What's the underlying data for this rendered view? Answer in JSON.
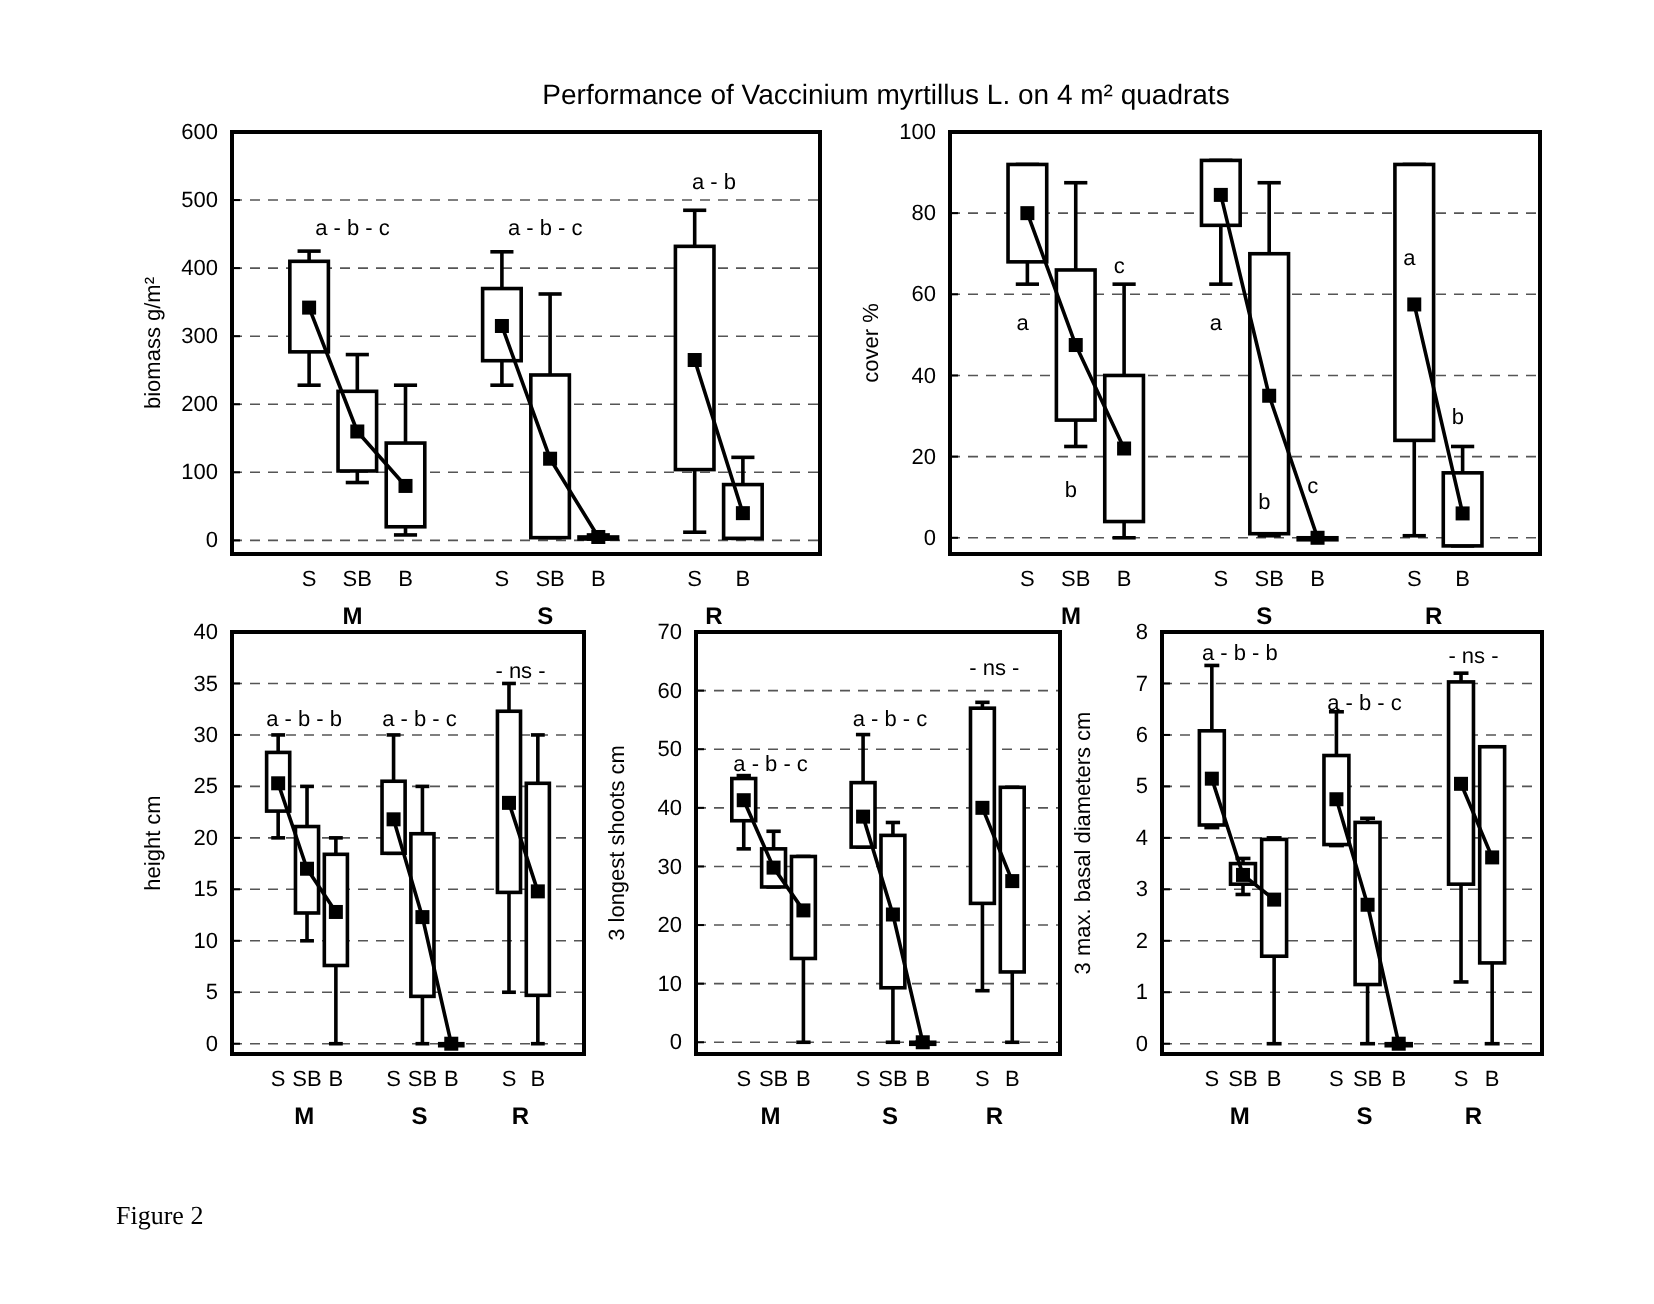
{
  "chart_data": [
    {
      "type": "box",
      "title": "Performance of Vaccinium myrtillus L. on 4 m² quadrats",
      "ylabel": "biomass g/m²",
      "categories": [
        null,
        "S",
        "SB",
        "B",
        null,
        "S",
        "SB",
        "B",
        null,
        "S",
        "B",
        null
      ],
      "ylim": [
        -20,
        600
      ],
      "yticks": [
        0,
        100,
        200,
        300,
        400,
        500,
        600
      ],
      "grid": "y",
      "series": [
        {
          "type": "box",
          "color": "#ffffff",
          "boxes": [
            null,
            {
              "low": 228,
              "q1": 277,
              "median": 342,
              "q3": 410,
              "high": 425
            },
            {
              "low": 85,
              "q1": 102,
              "median": 160,
              "q3": 219,
              "high": 273
            },
            {
              "low": 8,
              "q1": 20,
              "median": 80,
              "q3": 143,
              "high": 228
            },
            null,
            {
              "low": 228,
              "q1": 264,
              "median": 315,
              "q3": 370,
              "high": 424
            },
            {
              "low": 4,
              "q1": 4,
              "median": 120,
              "q3": 243,
              "high": 362
            },
            {
              "low": 2,
              "q1": 5,
              "median": 5,
              "q3": 5,
              "high": 8
            },
            null,
            {
              "low": 12,
              "q1": 104,
              "median": 265,
              "q3": 432,
              "high": 485
            },
            {
              "low": 3,
              "q1": 3,
              "median": 40,
              "q3": 82,
              "high": 122
            },
            null
          ]
        },
        {
          "type": "line",
          "color": "#000000",
          "values": [
            null,
            342,
            160,
            80,
            null,
            315,
            120,
            5,
            null,
            265,
            40,
            null
          ]
        }
      ],
      "annotations": [
        "M",
        "S",
        "R",
        "a - b - c",
        "a - b - c",
        "a - b",
        "Figure 2"
      ]
    },
    {
      "type": "box",
      "ylabel": "cover %",
      "categories": [
        null,
        "S",
        "SB",
        "B",
        null,
        "S",
        "SB",
        "B",
        null,
        "S",
        "B",
        null
      ],
      "ylim": [
        -4,
        100
      ],
      "yticks": [
        0,
        20,
        40,
        60,
        80,
        100
      ],
      "grid": "y",
      "series": [
        {
          "type": "box",
          "color": "#ffffff",
          "boxes": [
            null,
            {
              "low": 62.5,
              "q1": 68,
              "median": 80,
              "q3": 92,
              "high": 92
            },
            {
              "low": 22.5,
              "q1": 29,
              "median": 47.5,
              "q3": 66,
              "high": 87.5
            },
            {
              "low": 0,
              "q1": 4,
              "median": 22,
              "q3": 40,
              "high": 62.5
            },
            null,
            {
              "low": 62.5,
              "q1": 77,
              "median": 84.5,
              "q3": 93,
              "high": 93
            },
            {
              "low": 0.5,
              "q1": 1,
              "median": 35,
              "q3": 70,
              "high": 87.5
            },
            {
              "low": 0,
              "q1": 0,
              "median": 0,
              "q3": 0,
              "high": 0
            },
            null,
            {
              "low": 0.5,
              "q1": 24,
              "median": 57.5,
              "q3": 92,
              "high": 92
            },
            {
              "low": -2,
              "q1": -2,
              "median": 6,
              "q3": 16,
              "high": 22.5
            },
            null
          ]
        },
        {
          "type": "line",
          "color": "#000000",
          "values": [
            null,
            80,
            47.5,
            22,
            null,
            84.5,
            35,
            0,
            null,
            57.5,
            6,
            null
          ]
        }
      ],
      "annotations": [
        "M",
        "S",
        "R",
        "a",
        "b",
        "c",
        "a",
        "b",
        "c",
        "a",
        "b"
      ]
    },
    {
      "type": "box",
      "ylabel": "height cm",
      "categories": [
        null,
        "S",
        "SB",
        "B",
        null,
        "S",
        "SB",
        "B",
        null,
        "S",
        "B",
        null
      ],
      "ylim": [
        -1,
        40
      ],
      "yticks": [
        0,
        5,
        10,
        15,
        20,
        25,
        30,
        35,
        40
      ],
      "grid": "y",
      "series": [
        {
          "type": "box",
          "color": "#ffffff",
          "boxes": [
            null,
            {
              "low": 20,
              "q1": 22.6,
              "median": 25.3,
              "q3": 28.3,
              "high": 30
            },
            {
              "low": 10,
              "q1": 12.7,
              "median": 17,
              "q3": 21.1,
              "high": 25
            },
            {
              "low": 0,
              "q1": 7.6,
              "median": 12.8,
              "q3": 18.4,
              "high": 20
            },
            null,
            {
              "low": 18.5,
              "q1": 18.5,
              "median": 21.8,
              "q3": 25.5,
              "high": 30
            },
            {
              "low": 0,
              "q1": 4.6,
              "median": 12.3,
              "q3": 20.4,
              "high": 25
            },
            {
              "low": 0,
              "q1": 0,
              "median": 0,
              "q3": 0,
              "high": 0
            },
            null,
            {
              "low": 5,
              "q1": 14.7,
              "median": 23.4,
              "q3": 32.3,
              "high": 35
            },
            {
              "low": 0,
              "q1": 4.7,
              "median": 14.8,
              "q3": 25.3,
              "high": 30
            },
            null
          ]
        },
        {
          "type": "line",
          "color": "#000000",
          "values": [
            null,
            25.3,
            17,
            12.8,
            null,
            21.8,
            12.3,
            0,
            null,
            23.4,
            14.8,
            null
          ]
        }
      ],
      "annotations": [
        "M",
        "S",
        "R",
        "a - b - b",
        "a - b - c",
        "- ns -"
      ]
    },
    {
      "type": "box",
      "ylabel": "3 longest shoots cm",
      "categories": [
        null,
        "S",
        "SB",
        "B",
        null,
        "S",
        "SB",
        "B",
        null,
        "S",
        "B",
        null
      ],
      "ylim": [
        -2,
        70
      ],
      "yticks": [
        0,
        10,
        20,
        30,
        40,
        50,
        60,
        70
      ],
      "grid": "y",
      "series": [
        {
          "type": "box",
          "color": "#ffffff",
          "boxes": [
            null,
            {
              "low": 33,
              "q1": 37.8,
              "median": 41.3,
              "q3": 45,
              "high": 45.5
            },
            {
              "low": 26.5,
              "q1": 26.5,
              "median": 29.8,
              "q3": 33,
              "high": 36
            },
            {
              "low": 0,
              "q1": 14.3,
              "median": 22.5,
              "q3": 31.7,
              "high": 31.7
            },
            null,
            {
              "low": 33.3,
              "q1": 33.3,
              "median": 38.5,
              "q3": 44.3,
              "high": 52.5
            },
            {
              "low": 0,
              "q1": 9.3,
              "median": 21.8,
              "q3": 35.3,
              "high": 37.5
            },
            {
              "low": 0,
              "q1": 0,
              "median": 0,
              "q3": 0,
              "high": 0
            },
            null,
            {
              "low": 8.8,
              "q1": 23.7,
              "median": 40,
              "q3": 57,
              "high": 58
            },
            {
              "low": 0,
              "q1": 12,
              "median": 27.5,
              "q3": 43.5,
              "high": 43.5
            },
            null
          ]
        },
        {
          "type": "line",
          "color": "#000000",
          "values": [
            null,
            41.3,
            29.8,
            22.5,
            null,
            38.5,
            21.8,
            0,
            null,
            40,
            27.5,
            null
          ]
        }
      ],
      "annotations": [
        "M",
        "S",
        "R",
        "a - b - c",
        "a - b - c",
        "- ns -"
      ]
    },
    {
      "type": "box",
      "ylabel": "3 max. basal diameters  cm",
      "categories": [
        null,
        "S",
        "SB",
        "B",
        null,
        "S",
        "SB",
        "B",
        null,
        "S",
        "B",
        null
      ],
      "ylim": [
        -0.2,
        8
      ],
      "yticks": [
        0,
        1,
        2,
        3,
        4,
        5,
        6,
        7,
        8
      ],
      "grid": "y",
      "series": [
        {
          "type": "box",
          "color": "#ffffff",
          "boxes": [
            null,
            {
              "low": 4.2,
              "q1": 4.25,
              "median": 5.15,
              "q3": 6.08,
              "high": 7.35
            },
            {
              "low": 2.9,
              "q1": 3.1,
              "median": 3.28,
              "q3": 3.5,
              "high": 3.6
            },
            {
              "low": 0,
              "q1": 1.7,
              "median": 2.8,
              "q3": 3.97,
              "high": 4
            },
            null,
            {
              "low": 3.85,
              "q1": 3.87,
              "median": 4.75,
              "q3": 5.6,
              "high": 6.45
            },
            {
              "low": 0,
              "q1": 1.15,
              "median": 2.7,
              "q3": 4.3,
              "high": 4.38
            },
            {
              "low": 0,
              "q1": 0,
              "median": 0,
              "q3": 0,
              "high": 0
            },
            null,
            {
              "low": 1.2,
              "q1": 3.1,
              "median": 5.05,
              "q3": 7.03,
              "high": 7.2
            },
            {
              "low": 0,
              "q1": 1.57,
              "median": 3.62,
              "q3": 5.77,
              "high": 5.77
            },
            null
          ]
        },
        {
          "type": "line",
          "color": "#000000",
          "values": [
            null,
            5.15,
            3.28,
            2.8,
            null,
            4.75,
            2.7,
            0,
            null,
            5.05,
            3.62,
            null
          ]
        }
      ],
      "annotations": [
        "M",
        "S",
        "R",
        "a - b - b",
        "a - b - c",
        "- ns -"
      ]
    }
  ]
}
